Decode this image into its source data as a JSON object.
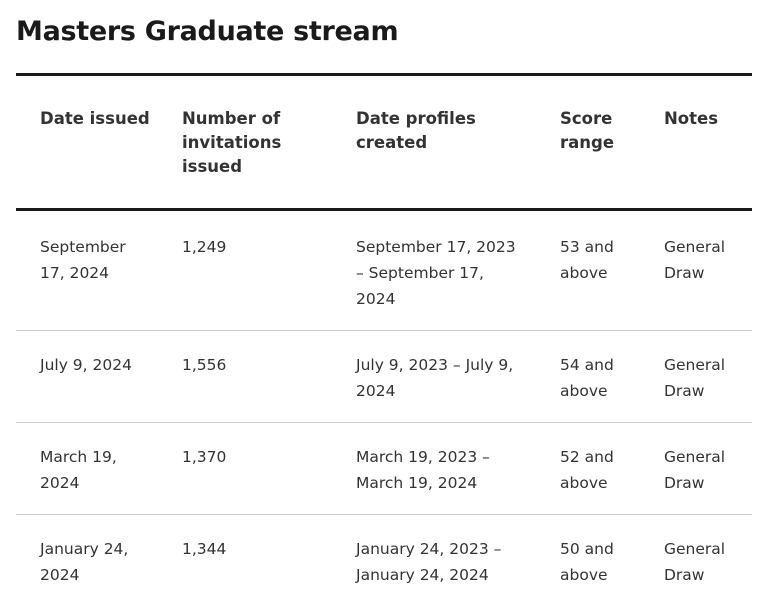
{
  "page": {
    "title": "Masters Graduate stream"
  },
  "table": {
    "headers": [
      "Date issued",
      "Number of invitations issued",
      "Date profiles created",
      "Score range",
      "Notes"
    ],
    "rows": [
      {
        "date_issued": "September 17, 2024",
        "invitations": "1,249",
        "profiles_created": "September 17, 2023 – September 17, 2024",
        "score_range": "53 and above",
        "notes": "General Draw"
      },
      {
        "date_issued": "July 9, 2024",
        "invitations": "1,556",
        "profiles_created": "July 9, 2023 – July 9, 2024",
        "score_range": "54 and above",
        "notes": "General Draw"
      },
      {
        "date_issued": "March 19, 2024",
        "invitations": "1,370",
        "profiles_created": "March 19, 2023 – March 19, 2024",
        "score_range": "52 and above",
        "notes": "General Draw"
      },
      {
        "date_issued": "January 24, 2024",
        "invitations": "1,344",
        "profiles_created": "January 24, 2023 – January 24, 2024",
        "score_range": "50 and above",
        "notes": "General Draw"
      }
    ]
  }
}
